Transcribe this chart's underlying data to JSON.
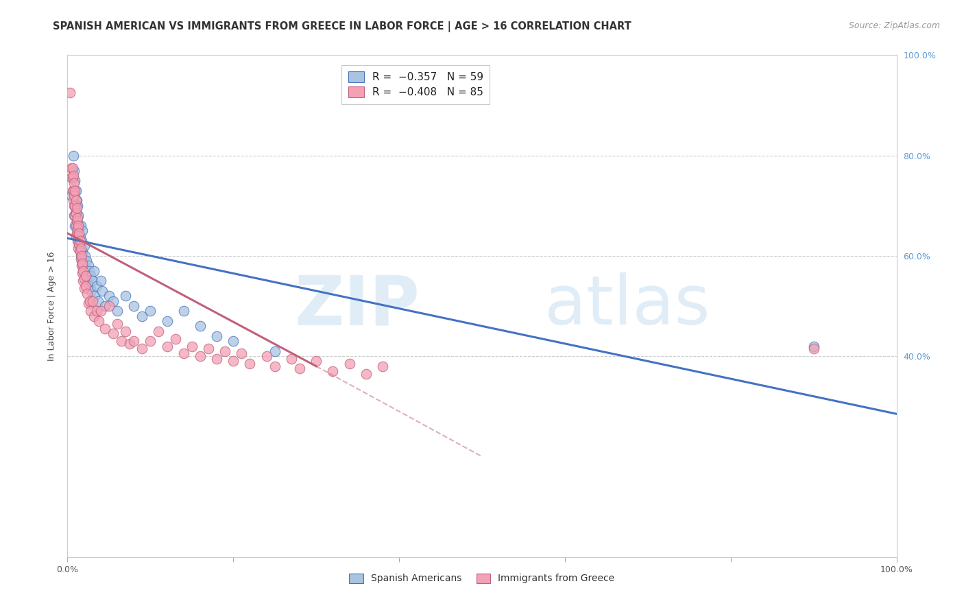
{
  "title": "SPANISH AMERICAN VS IMMIGRANTS FROM GREECE IN LABOR FORCE | AGE > 16 CORRELATION CHART",
  "source": "Source: ZipAtlas.com",
  "ylabel": "In Labor Force | Age > 16",
  "xlim": [
    0.0,
    1.0
  ],
  "ylim": [
    0.0,
    1.0
  ],
  "watermark_zip": "ZIP",
  "watermark_atlas": "atlas",
  "sa_color": "#4472c4",
  "greece_color": "#c0607a",
  "sa_scatter_color": "#a8c4e0",
  "greece_scatter_color": "#f4a0b5",
  "sa_line": {
    "x0": 0.0,
    "y0": 0.635,
    "x1": 1.0,
    "y1": 0.285
  },
  "greece_line_solid": {
    "x0": 0.0,
    "y0": 0.645,
    "x1": 0.3,
    "y1": 0.38
  },
  "greece_line_dash": {
    "x0": 0.3,
    "y0": 0.38,
    "x1": 0.5,
    "y1": 0.2
  },
  "right_yticks": [
    0.4,
    0.6,
    0.8,
    1.0
  ],
  "right_yticklabels": [
    "40.0%",
    "60.0%",
    "80.0%",
    "100.0%"
  ],
  "spanish_americans": [
    [
      0.005,
      0.72
    ],
    [
      0.007,
      0.8
    ],
    [
      0.008,
      0.77
    ],
    [
      0.008,
      0.68
    ],
    [
      0.009,
      0.75
    ],
    [
      0.009,
      0.66
    ],
    [
      0.01,
      0.73
    ],
    [
      0.01,
      0.69
    ],
    [
      0.01,
      0.64
    ],
    [
      0.011,
      0.71
    ],
    [
      0.011,
      0.67
    ],
    [
      0.012,
      0.7
    ],
    [
      0.012,
      0.65
    ],
    [
      0.013,
      0.68
    ],
    [
      0.013,
      0.63
    ],
    [
      0.014,
      0.66
    ],
    [
      0.014,
      0.62
    ],
    [
      0.015,
      0.64
    ],
    [
      0.015,
      0.61
    ],
    [
      0.016,
      0.66
    ],
    [
      0.016,
      0.6
    ],
    [
      0.017,
      0.63
    ],
    [
      0.017,
      0.59
    ],
    [
      0.018,
      0.65
    ],
    [
      0.018,
      0.61
    ],
    [
      0.019,
      0.58
    ],
    [
      0.02,
      0.62
    ],
    [
      0.02,
      0.57
    ],
    [
      0.021,
      0.6
    ],
    [
      0.022,
      0.56
    ],
    [
      0.023,
      0.59
    ],
    [
      0.024,
      0.55
    ],
    [
      0.025,
      0.58
    ],
    [
      0.026,
      0.57
    ],
    [
      0.027,
      0.54
    ],
    [
      0.028,
      0.56
    ],
    [
      0.029,
      0.53
    ],
    [
      0.03,
      0.55
    ],
    [
      0.032,
      0.57
    ],
    [
      0.033,
      0.52
    ],
    [
      0.035,
      0.54
    ],
    [
      0.037,
      0.51
    ],
    [
      0.04,
      0.55
    ],
    [
      0.042,
      0.53
    ],
    [
      0.045,
      0.5
    ],
    [
      0.05,
      0.52
    ],
    [
      0.055,
      0.51
    ],
    [
      0.06,
      0.49
    ],
    [
      0.07,
      0.52
    ],
    [
      0.08,
      0.5
    ],
    [
      0.09,
      0.48
    ],
    [
      0.1,
      0.49
    ],
    [
      0.12,
      0.47
    ],
    [
      0.14,
      0.49
    ],
    [
      0.16,
      0.46
    ],
    [
      0.18,
      0.44
    ],
    [
      0.2,
      0.43
    ],
    [
      0.25,
      0.41
    ],
    [
      0.9,
      0.42
    ]
  ],
  "greece_immigrants": [
    [
      0.003,
      0.925
    ],
    [
      0.005,
      0.775
    ],
    [
      0.005,
      0.755
    ],
    [
      0.006,
      0.775
    ],
    [
      0.006,
      0.755
    ],
    [
      0.006,
      0.73
    ],
    [
      0.007,
      0.76
    ],
    [
      0.007,
      0.73
    ],
    [
      0.007,
      0.71
    ],
    [
      0.008,
      0.745
    ],
    [
      0.008,
      0.72
    ],
    [
      0.008,
      0.7
    ],
    [
      0.009,
      0.73
    ],
    [
      0.009,
      0.7
    ],
    [
      0.009,
      0.68
    ],
    [
      0.01,
      0.71
    ],
    [
      0.01,
      0.685
    ],
    [
      0.01,
      0.66
    ],
    [
      0.011,
      0.695
    ],
    [
      0.011,
      0.67
    ],
    [
      0.011,
      0.645
    ],
    [
      0.012,
      0.675
    ],
    [
      0.012,
      0.655
    ],
    [
      0.012,
      0.63
    ],
    [
      0.013,
      0.66
    ],
    [
      0.013,
      0.64
    ],
    [
      0.013,
      0.615
    ],
    [
      0.014,
      0.645
    ],
    [
      0.014,
      0.625
    ],
    [
      0.015,
      0.63
    ],
    [
      0.015,
      0.61
    ],
    [
      0.016,
      0.615
    ],
    [
      0.016,
      0.595
    ],
    [
      0.017,
      0.6
    ],
    [
      0.017,
      0.58
    ],
    [
      0.018,
      0.585
    ],
    [
      0.018,
      0.565
    ],
    [
      0.019,
      0.57
    ],
    [
      0.019,
      0.55
    ],
    [
      0.02,
      0.555
    ],
    [
      0.02,
      0.535
    ],
    [
      0.022,
      0.54
    ],
    [
      0.022,
      0.56
    ],
    [
      0.024,
      0.525
    ],
    [
      0.025,
      0.505
    ],
    [
      0.027,
      0.51
    ],
    [
      0.028,
      0.49
    ],
    [
      0.03,
      0.51
    ],
    [
      0.032,
      0.48
    ],
    [
      0.035,
      0.49
    ],
    [
      0.038,
      0.47
    ],
    [
      0.04,
      0.49
    ],
    [
      0.045,
      0.455
    ],
    [
      0.05,
      0.5
    ],
    [
      0.055,
      0.445
    ],
    [
      0.06,
      0.465
    ],
    [
      0.065,
      0.43
    ],
    [
      0.07,
      0.45
    ],
    [
      0.075,
      0.425
    ],
    [
      0.08,
      0.43
    ],
    [
      0.09,
      0.415
    ],
    [
      0.1,
      0.43
    ],
    [
      0.11,
      0.45
    ],
    [
      0.12,
      0.42
    ],
    [
      0.13,
      0.435
    ],
    [
      0.14,
      0.405
    ],
    [
      0.15,
      0.42
    ],
    [
      0.16,
      0.4
    ],
    [
      0.17,
      0.415
    ],
    [
      0.18,
      0.395
    ],
    [
      0.19,
      0.41
    ],
    [
      0.2,
      0.39
    ],
    [
      0.21,
      0.405
    ],
    [
      0.22,
      0.385
    ],
    [
      0.24,
      0.4
    ],
    [
      0.25,
      0.38
    ],
    [
      0.27,
      0.395
    ],
    [
      0.28,
      0.375
    ],
    [
      0.3,
      0.39
    ],
    [
      0.32,
      0.37
    ],
    [
      0.34,
      0.385
    ],
    [
      0.36,
      0.365
    ],
    [
      0.38,
      0.38
    ],
    [
      0.9,
      0.415
    ]
  ]
}
